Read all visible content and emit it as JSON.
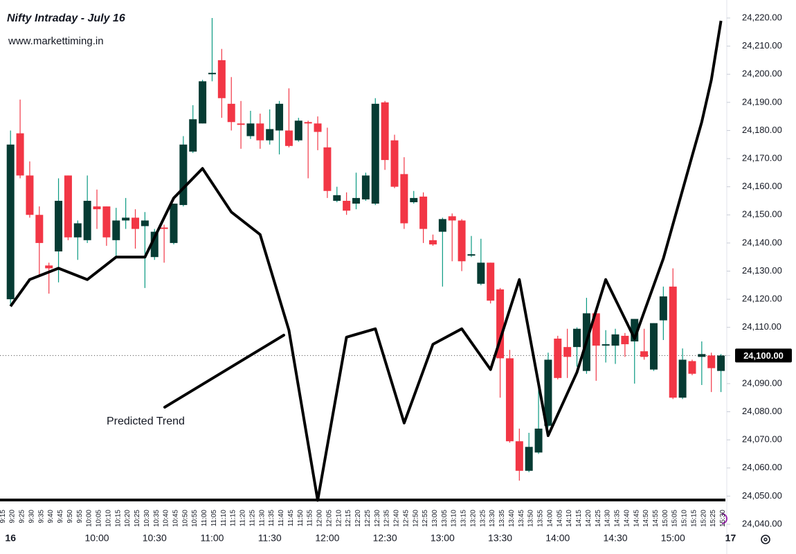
{
  "chart_data": {
    "type": "candlestick",
    "title": "Nifty Intraday - July 16",
    "subtitle": "www.markettiming.in",
    "x": [
      "9:15",
      "9:20",
      "9:25",
      "9:30",
      "9:35",
      "9:40",
      "9:45",
      "9:50",
      "9:55",
      "10:00",
      "10:05",
      "10:10",
      "10:15",
      "10:20",
      "10:25",
      "10:30",
      "10:35",
      "10:40",
      "10:45",
      "10:50",
      "10:55",
      "11:00",
      "11:05",
      "11:10",
      "11:15",
      "11:20",
      "11:25",
      "11:30",
      "11:35",
      "11:40",
      "11:45",
      "11:50",
      "11:55",
      "12:00",
      "12:05",
      "12:10",
      "12:15",
      "12:20",
      "12:25",
      "12:30",
      "12:35",
      "12:40",
      "12:45",
      "12:50",
      "12:55",
      "13:00",
      "13:05",
      "13:10",
      "13:15",
      "13:20",
      "13:25",
      "13:30",
      "13:35",
      "13:40",
      "13:45",
      "13:50",
      "13:55",
      "14:00",
      "14:05",
      "14:10",
      "14:15",
      "14:20",
      "14:25",
      "14:30",
      "14:35",
      "14:40",
      "14:45",
      "14:50",
      "14:55",
      "15:00",
      "15:05",
      "15:10",
      "15:15",
      "15:20",
      "15:25"
    ],
    "open": [
      24120,
      24179,
      24164,
      24150,
      24132,
      24137,
      24164,
      24142,
      24141,
      24153,
      24153,
      24141,
      24148,
      24149,
      24146,
      24135,
      24145.5,
      24140,
      24153.5,
      24172.5,
      24182.5,
      24200,
      24205,
      24189.5,
      24182.5,
      24178,
      24182.5,
      24176.5,
      24180,
      24180,
      24176.5,
      24183,
      24182.5,
      24174,
      24155,
      24155,
      24154,
      24155.5,
      24154,
      24190,
      24176.5,
      24164.5,
      24154.5,
      24156.5,
      24141,
      24144,
      24149.5,
      24148,
      24135.5,
      24125.5,
      24133,
      24123.5,
      24099,
      24069.5,
      24059,
      24065.5,
      24075,
      24106,
      24103,
      24103,
      24094.5,
      24115,
      24103.5,
      24103.5,
      24107,
      24105,
      24101.5,
      24095,
      24112.5,
      24124.5,
      24085,
      24098,
      24099.5,
      24100,
      24094.5
    ],
    "high": [
      24180,
      24191,
      24169,
      24153,
      24133,
      24163,
      24164,
      24148,
      24164,
      24159,
      24153,
      24152.5,
      24156,
      24152,
      24151,
      24145,
      24146.5,
      24154,
      24178,
      24189,
      24198,
      24220,
      24209,
      24199,
      24190.5,
      24187,
      24186,
      24187.5,
      24190.5,
      24195,
      24184.5,
      24183.5,
      24185,
      24181,
      24160,
      24158,
      24165,
      24165,
      24191.5,
      24190.5,
      24178.5,
      24170.5,
      24158.5,
      24158,
      24143,
      24149,
      24150.5,
      24148.5,
      24142.5,
      24141.5,
      24133,
      24124,
      24102,
      24074,
      24072.5,
      24089,
      24101,
      24107,
      24109.5,
      24110,
      24120.5,
      24116,
      24109,
      24109.5,
      24108,
      24113,
      24109.5,
      24111.5,
      24124.5,
      24131,
      24102.5,
      24098.5,
      24105,
      24101,
      24100.5
    ],
    "low": [
      24118,
      24163,
      24149,
      24128,
      24122,
      24126,
      24141,
      24134,
      24140,
      24145,
      24139,
      24135,
      24145,
      24138,
      24124,
      24134,
      24133,
      24139.5,
      24153,
      24172,
      24182.5,
      24197.5,
      24184.5,
      24180,
      24173.5,
      24177,
      24173.5,
      24175,
      24171.5,
      24174,
      24176,
      24163,
      24173,
      24156,
      24154.5,
      24150,
      24152,
      24155,
      24153.5,
      24166,
      24159.5,
      24145,
      24154,
      24140,
      24139,
      24124.5,
      24133.5,
      24130,
      24135,
      24125,
      24118.5,
      24085,
      24069,
      24055.5,
      24058.5,
      24065,
      24074.5,
      24091.5,
      24092,
      24096,
      24093.5,
      24091,
      24097.5,
      24097,
      24099.5,
      24090,
      24098.5,
      24094.5,
      24105.5,
      24084.5,
      24084.5,
      24093,
      24089.5,
      24087,
      24087
    ],
    "close": [
      24175,
      24164,
      24150,
      24140,
      24131,
      24155,
      24142,
      24147,
      24155,
      24152,
      24142,
      24148,
      24149,
      24145,
      24148,
      24144,
      24145,
      24154,
      24175,
      24184,
      24197.5,
      24200.5,
      24191.5,
      24183,
      24182,
      24182.5,
      24176.5,
      24180.5,
      24189.5,
      24174.5,
      24183.5,
      24182.5,
      24179.5,
      24158.5,
      24157,
      24151.5,
      24156,
      24164,
      24189.5,
      24169.5,
      24160,
      24147,
      24156,
      24145,
      24139.5,
      24148.5,
      24148,
      24133.5,
      24136,
      24133,
      24119.5,
      24099,
      24069.5,
      24059,
      24067.5,
      24074,
      24098.5,
      24092,
      24099.5,
      24109.5,
      24115,
      24103.5,
      24104,
      24107.5,
      24104,
      24113,
      24099.5,
      24111.5,
      24121,
      24085,
      24098.5,
      24093.5,
      24100.5,
      24095.5,
      24100
    ],
    "up_color": "#063b33",
    "up_wick_color": "#089981",
    "down_color": "#f23645",
    "xticks": [
      "9:15",
      "9:20",
      "9:25",
      "9:30",
      "9:35",
      "9:40",
      "9:45",
      "9:50",
      "9:55",
      "10:00",
      "10:05",
      "10:10",
      "10:15",
      "10:20",
      "10:25",
      "10:30",
      "10:35",
      "10:40",
      "10:45",
      "10:50",
      "10:55",
      "11:00",
      "11:05",
      "11:10",
      "11:15",
      "11:20",
      "11:25",
      "11:30",
      "11:35",
      "11:40",
      "11:45",
      "11:50",
      "11:55",
      "12:00",
      "12:05",
      "12:10",
      "12:15",
      "12:20",
      "12:25",
      "12:30",
      "12:35",
      "12:40",
      "12:45",
      "12:50",
      "12:55",
      "13:00",
      "13:05",
      "13:10",
      "13:15",
      "13:20",
      "13:25",
      "13:30",
      "13:35",
      "13:40",
      "13:45",
      "13:50",
      "13:55",
      "14:00",
      "14:05",
      "14:10",
      "14:15",
      "14:20",
      "14:25",
      "14:30",
      "14:35",
      "14:40",
      "14:45",
      "14:50",
      "14:55",
      "15:00",
      "15:05",
      "15:10",
      "15:15",
      "15:20",
      "15:25",
      "15:30"
    ],
    "major_xticks": [
      {
        "value": "9:15",
        "label": "16"
      },
      "10:00",
      "10:30",
      "11:00",
      "11:30",
      "12:00",
      "12:30",
      "13:00",
      "13:30",
      "14:00",
      "14:30",
      "15:00",
      {
        "value": "15:30",
        "label": "17"
      }
    ],
    "ylim": [
      24040,
      24220
    ],
    "yticks": [
      {
        "value": 24040,
        "label": "24,040.00"
      },
      {
        "value": 24050,
        "label": "24,050.00"
      },
      {
        "value": 24060,
        "label": "24,060.00"
      },
      {
        "value": 24070,
        "label": "24,070.00"
      },
      {
        "value": 24080,
        "label": "24,080.00"
      },
      {
        "value": 24090,
        "label": "24,090.00"
      },
      {
        "value": 24100,
        "label": "24,100.00"
      },
      {
        "value": 24110,
        "label": "24,110.00"
      },
      {
        "value": 24120,
        "label": "24,120.00"
      },
      {
        "value": 24130,
        "label": "24,130.00"
      },
      {
        "value": 24140,
        "label": "24,140.00"
      },
      {
        "value": 24150,
        "label": "24,150.00"
      },
      {
        "value": 24160,
        "label": "24,160.00"
      },
      {
        "value": 24170,
        "label": "24,170.00"
      },
      {
        "value": 24180,
        "label": "24,180.00"
      },
      {
        "value": 24190,
        "label": "24,190.00"
      },
      {
        "value": 24200,
        "label": "24,200.00"
      },
      {
        "value": 24210,
        "label": "24,210.00"
      },
      {
        "value": 24220,
        "label": "24,220.00"
      }
    ],
    "last_price": {
      "value": 24100,
      "label": "24,100.00"
    },
    "trend": {
      "name": "Predicted Trend",
      "color": "#000000",
      "x": [
        "9:15",
        "9:25",
        "9:40",
        "9:55",
        "10:10",
        "10:25",
        "10:40",
        "10:55",
        "11:10",
        "11:25",
        "11:40",
        "11:55",
        "12:10",
        "12:25",
        "12:40",
        "12:55",
        "13:10",
        "13:25",
        "13:40",
        "13:55",
        "14:10",
        "14:25",
        "14:40",
        "14:55",
        "15:10",
        "15:15",
        "15:20",
        "15:25"
      ],
      "values": [
        24117.5,
        24127,
        24131,
        24127,
        24135,
        24135,
        24156,
        24166.5,
        24151,
        24143,
        24109,
        24048.5,
        24106.5,
        24109.5,
        24076,
        24104,
        24109.5,
        24095,
        24127,
        24071.5,
        24094,
        24127,
        24106,
        24134.5,
        24171,
        24183,
        24198,
        24219
      ]
    }
  }
}
